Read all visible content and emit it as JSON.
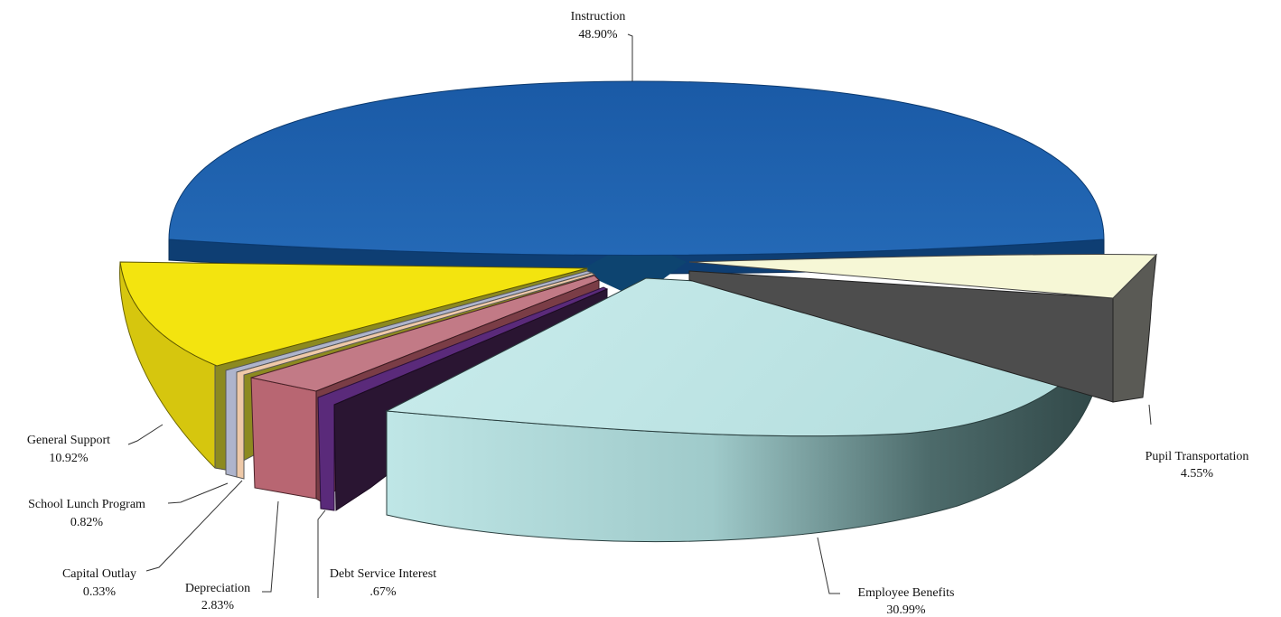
{
  "chart_data": {
    "type": "pie",
    "style": "3d-exploded",
    "title": "",
    "slices": [
      {
        "label": "Instruction",
        "value": 48.9,
        "value_text": "48.90%",
        "color": "#1f63ad"
      },
      {
        "label": "Pupil Transportation",
        "value": 4.55,
        "value_text": "4.55%",
        "color": "#f6f7d6"
      },
      {
        "label": "Employee Benefits",
        "value": 30.99,
        "value_text": "30.99%",
        "color": "#bfe6e6"
      },
      {
        "label": "Debt Service Interest",
        "value": 0.67,
        "value_text": ".67%",
        "color": "#5a2a7a"
      },
      {
        "label": "Depreciation",
        "value": 2.83,
        "value_text": "2.83%",
        "color": "#c27a86"
      },
      {
        "label": "Capital Outlay",
        "value": 0.33,
        "value_text": "0.33%",
        "color": "#efc9a8"
      },
      {
        "label": "School Lunch Program",
        "value": 0.82,
        "value_text": "0.82%",
        "color": "#aeb4cc"
      },
      {
        "label": "General Support",
        "value": 10.92,
        "value_text": "10.92%",
        "color": "#f3e40f"
      }
    ]
  }
}
